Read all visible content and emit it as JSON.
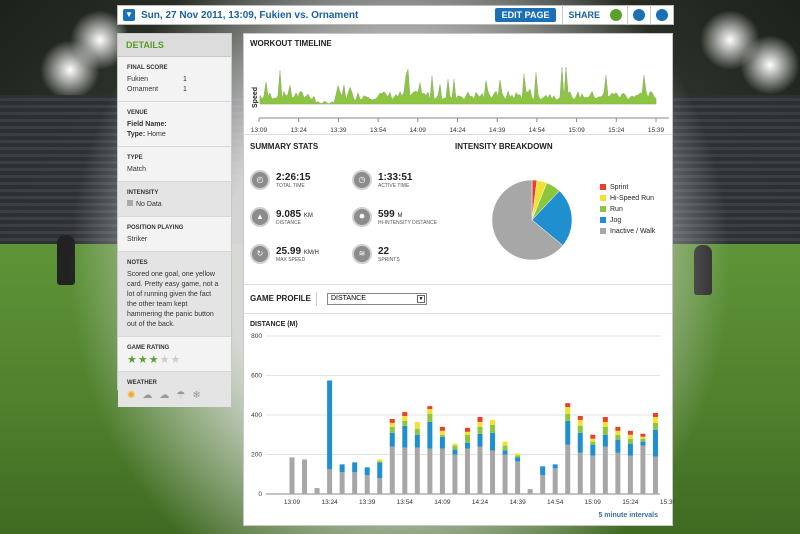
{
  "header": {
    "title": "Sun, 27 Nov 2011, 13:09, Fukien vs. Ornament",
    "edit_label": "EDIT PAGE",
    "share_label": "SHARE"
  },
  "sidebar": {
    "title": "DETAILS",
    "final_score": {
      "label": "FINAL SCORE",
      "teams": [
        {
          "name": "Fukien",
          "score": "1"
        },
        {
          "name": "Ornament",
          "score": "1"
        }
      ]
    },
    "venue": {
      "label": "VENUE",
      "field": "Field Name:",
      "type_label": "Type:",
      "type_value": "Home"
    },
    "type": {
      "label": "TYPE",
      "value": "Match"
    },
    "intensity": {
      "label": "INTENSITY",
      "value": "No Data"
    },
    "position": {
      "label": "POSITION PLAYING",
      "value": "Striker"
    },
    "notes": {
      "label": "NOTES",
      "text": "Scored one goal, one yellow card. Pretty easy game, not a lot of running given the fact the other team kept hammering the panic button out of the back."
    },
    "rating": {
      "label": "GAME RATING",
      "stars": 3,
      "max": 5
    },
    "weather": {
      "label": "WEATHER",
      "icons": [
        "sun-icon",
        "partly-cloudy-icon",
        "cloud-icon",
        "rain-icon",
        "snow-icon"
      ]
    }
  },
  "timeline": {
    "title": "WORKOUT TIMELINE",
    "ylabel": "Speed",
    "ticks": [
      "13:09",
      "13:24",
      "13:39",
      "13:54",
      "14:09",
      "14:24",
      "14:39",
      "14:54",
      "15:09",
      "15:24",
      "15:39"
    ]
  },
  "summary": {
    "title": "SUMMARY STATS",
    "stats": [
      {
        "value": "2:26:15",
        "unit": "",
        "label": "TOTAL TIME",
        "icon": "clock-icon"
      },
      {
        "value": "1:33:51",
        "unit": "",
        "label": "ACTIVE TIME",
        "icon": "active-clock-icon"
      },
      {
        "value": "9.085",
        "unit": "KM",
        "label": "DISTANCE",
        "icon": "distance-icon"
      },
      {
        "value": "599",
        "unit": "M",
        "label": "HI-INTENSITY DISTANCE",
        "icon": "hi-intensity-icon"
      },
      {
        "value": "25.99",
        "unit": "KM/H",
        "label": "MAX SPEED",
        "icon": "speed-icon"
      },
      {
        "value": "22",
        "unit": "",
        "label": "SPRINTS",
        "icon": "sprint-icon"
      }
    ]
  },
  "intensity": {
    "title": "INTENSITY BREAKDOWN",
    "legend": [
      {
        "name": "Sprint",
        "color": "#e8402a"
      },
      {
        "name": "Hi-Speed Run",
        "color": "#f2e033"
      },
      {
        "name": "Run",
        "color": "#8cc63f"
      },
      {
        "name": "Jog",
        "color": "#1f8fd0"
      },
      {
        "name": "Inactive / Walk",
        "color": "#a7a7a7"
      }
    ]
  },
  "profile": {
    "title": "GAME PROFILE",
    "select_value": "DISTANCE",
    "chart_title": "DISTANCE (M)",
    "footer": "5 minute intervals"
  },
  "chart_data": [
    {
      "type": "pie",
      "categories": [
        "Sprint",
        "Hi-Speed Run",
        "Run",
        "Jog",
        "Inactive / Walk"
      ],
      "values": [
        2,
        4,
        6,
        24,
        64
      ],
      "colors": [
        "#e8402a",
        "#f2e033",
        "#8cc63f",
        "#1f8fd0",
        "#a7a7a7"
      ]
    },
    {
      "type": "bar",
      "title": "DISTANCE (M)",
      "ylim": [
        0,
        800
      ],
      "yticks": [
        0,
        200,
        400,
        600,
        800
      ],
      "xticks": [
        "13:09",
        "13:24",
        "13:39",
        "13:54",
        "14:09",
        "14:24",
        "14:39",
        "14:54",
        "15:09",
        "15:24",
        "15:39"
      ],
      "x": [
        "13:09",
        "13:14",
        "13:19",
        "13:24",
        "13:29",
        "13:34",
        "13:39",
        "13:44",
        "13:49",
        "13:54",
        "13:59",
        "14:04",
        "14:09",
        "14:14",
        "14:19",
        "14:24",
        "14:29",
        "14:34",
        "14:39",
        "14:44",
        "14:49",
        "14:54",
        "14:59",
        "15:04",
        "15:09",
        "15:14",
        "15:19",
        "15:24",
        "15:29",
        "15:34",
        "15:39"
      ],
      "series": [
        {
          "name": "Inactive / Walk",
          "color": "#a7a7a7",
          "values": [
            185,
            175,
            30,
            125,
            110,
            110,
            95,
            80,
            240,
            235,
            235,
            230,
            230,
            200,
            230,
            240,
            220,
            200,
            165,
            25,
            95,
            130,
            250,
            210,
            195,
            240,
            210,
            195,
            245,
            190,
            0
          ]
        },
        {
          "name": "Jog",
          "color": "#1f8fd0",
          "values": [
            0,
            0,
            0,
            450,
            40,
            50,
            40,
            80,
            70,
            110,
            65,
            135,
            60,
            25,
            30,
            65,
            90,
            20,
            20,
            0,
            45,
            20,
            120,
            100,
            55,
            60,
            65,
            60,
            20,
            135,
            0
          ]
        },
        {
          "name": "Run",
          "color": "#8cc63f",
          "values": [
            0,
            0,
            0,
            0,
            0,
            0,
            0,
            5,
            30,
            25,
            30,
            40,
            10,
            20,
            40,
            35,
            40,
            25,
            10,
            0,
            0,
            0,
            35,
            35,
            15,
            40,
            25,
            25,
            15,
            35,
            0
          ]
        },
        {
          "name": "Hi-Speed Run",
          "color": "#f2e033",
          "values": [
            0,
            0,
            0,
            0,
            0,
            0,
            0,
            10,
            20,
            25,
            35,
            25,
            20,
            10,
            15,
            25,
            25,
            20,
            10,
            0,
            0,
            0,
            35,
            30,
            15,
            25,
            20,
            20,
            10,
            30,
            0
          ]
        },
        {
          "name": "Sprint",
          "color": "#e8402a",
          "values": [
            0,
            0,
            0,
            0,
            0,
            0,
            0,
            0,
            20,
            20,
            0,
            15,
            20,
            0,
            20,
            25,
            0,
            0,
            0,
            0,
            0,
            0,
            20,
            20,
            20,
            25,
            20,
            20,
            15,
            20,
            0
          ]
        }
      ]
    }
  ]
}
